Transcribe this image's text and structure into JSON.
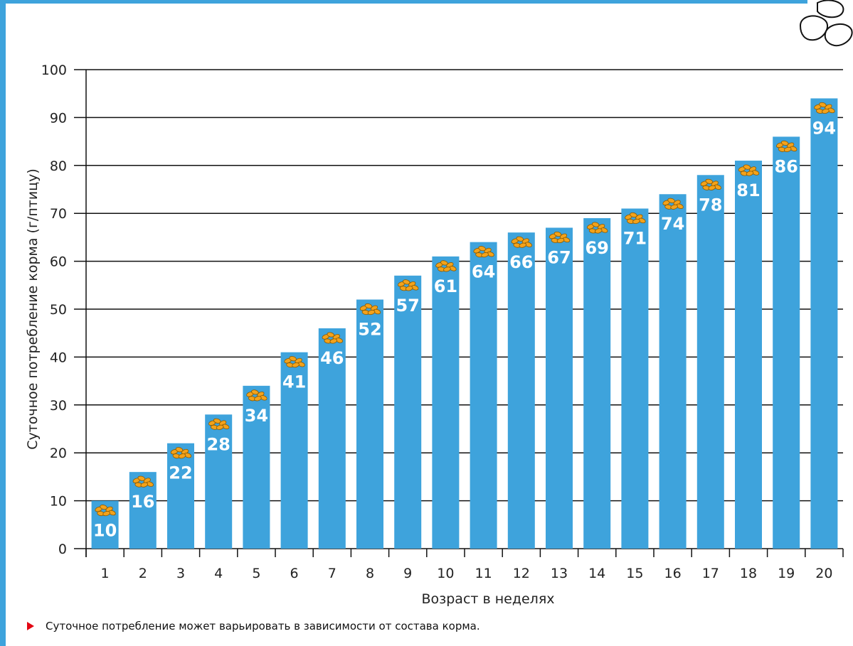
{
  "colors": {
    "bar": "#3ea3dc",
    "frame": "#3ea3dc",
    "arrow": "#e30613",
    "icon": "#f3a21b"
  },
  "chart_data": {
    "type": "bar",
    "xlabel": "Возраст в неделях",
    "ylabel": "Суточное потребление корма (г/птицу)",
    "categories": [
      "1",
      "2",
      "3",
      "4",
      "5",
      "6",
      "7",
      "8",
      "9",
      "10",
      "11",
      "12",
      "13",
      "14",
      "15",
      "16",
      "17",
      "18",
      "19",
      "20"
    ],
    "values": [
      10,
      16,
      22,
      28,
      34,
      41,
      46,
      52,
      57,
      61,
      64,
      66,
      67,
      69,
      71,
      74,
      78,
      81,
      86,
      94
    ],
    "ylim": [
      0,
      100
    ],
    "yticks": [
      0,
      10,
      20,
      30,
      40,
      50,
      60,
      70,
      80,
      90,
      100
    ],
    "grid": "horizontal",
    "bar_icon": "feed-grain-icon"
  },
  "footnote": {
    "icon": "triangle-arrow-icon",
    "text": "Суточное потребление может варьировать в зависимости от состава корма."
  },
  "decoration": {
    "icon": "feed-pellets-icon"
  }
}
